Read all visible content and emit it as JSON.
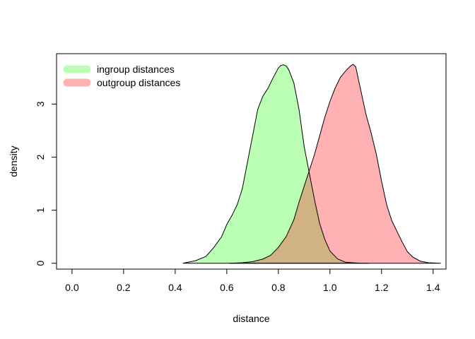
{
  "chart_data": {
    "type": "area",
    "title": "",
    "xlabel": "distance",
    "ylabel": "density",
    "xlim": [
      -0.06,
      1.45
    ],
    "ylim": [
      -0.11,
      3.95
    ],
    "x_ticks": [
      0.0,
      0.2,
      0.4,
      0.6,
      0.8,
      1.0,
      1.2,
      1.4
    ],
    "x_tick_labels": [
      "0.0",
      "0.2",
      "0.4",
      "0.6",
      "0.8",
      "1.0",
      "1.2",
      "1.4"
    ],
    "y_ticks": [
      0,
      1,
      2,
      3
    ],
    "y_tick_labels": [
      "0",
      "1",
      "2",
      "3"
    ],
    "grid": false,
    "legend_position": "top-left",
    "overlap_color": "#D1B383",
    "series": [
      {
        "name": "ingroup distances",
        "color": "#BBFFB4",
        "x": [
          0.43,
          0.48,
          0.52,
          0.55,
          0.58,
          0.6,
          0.62,
          0.64,
          0.66,
          0.68,
          0.7,
          0.72,
          0.74,
          0.76,
          0.78,
          0.8,
          0.81,
          0.82,
          0.83,
          0.84,
          0.86,
          0.88,
          0.9,
          0.92,
          0.94,
          0.96,
          0.98,
          1.0,
          1.03,
          1.06,
          1.09,
          1.12,
          1.15
        ],
        "y": [
          0.0,
          0.05,
          0.13,
          0.3,
          0.5,
          0.73,
          0.9,
          1.1,
          1.4,
          1.9,
          2.4,
          2.9,
          3.15,
          3.3,
          3.5,
          3.68,
          3.73,
          3.74,
          3.72,
          3.65,
          3.4,
          2.9,
          2.2,
          1.7,
          1.2,
          0.75,
          0.45,
          0.23,
          0.08,
          0.02,
          0.01,
          0.0,
          0.0
        ]
      },
      {
        "name": "outgroup distances",
        "color": "#FFB1B4",
        "x": [
          0.61,
          0.66,
          0.7,
          0.74,
          0.77,
          0.8,
          0.83,
          0.86,
          0.88,
          0.9,
          0.92,
          0.94,
          0.96,
          0.98,
          1.0,
          1.02,
          1.04,
          1.06,
          1.08,
          1.09,
          1.1,
          1.12,
          1.14,
          1.16,
          1.18,
          1.2,
          1.22,
          1.24,
          1.26,
          1.28,
          1.3,
          1.32,
          1.35,
          1.38,
          1.43
        ],
        "y": [
          0.0,
          0.01,
          0.03,
          0.08,
          0.15,
          0.3,
          0.5,
          0.82,
          1.15,
          1.45,
          1.75,
          2.05,
          2.4,
          2.75,
          3.05,
          3.3,
          3.5,
          3.62,
          3.72,
          3.75,
          3.7,
          3.25,
          2.8,
          2.45,
          2.05,
          1.55,
          1.1,
          0.8,
          0.6,
          0.4,
          0.22,
          0.12,
          0.04,
          0.01,
          0.0
        ]
      }
    ]
  }
}
